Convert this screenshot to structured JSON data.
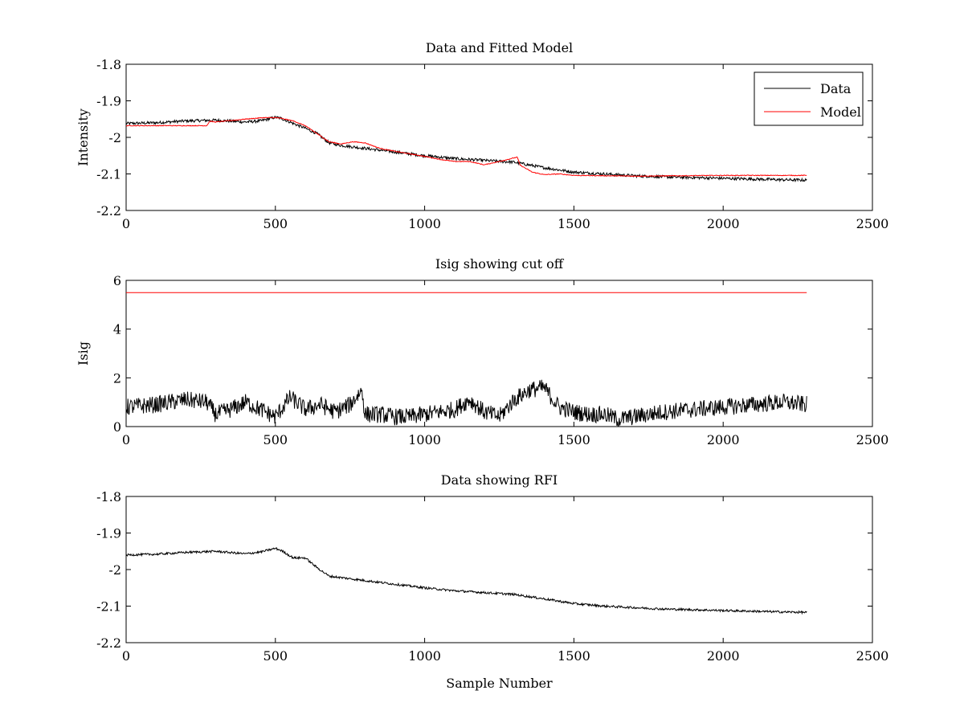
{
  "chart_data": [
    {
      "type": "line",
      "title": "Data and Fitted Model",
      "xlabel": "",
      "ylabel": "Intensity",
      "xlim": [
        0,
        2500
      ],
      "ylim": [
        -2.2,
        -1.8
      ],
      "xticks": [
        "0",
        "500",
        "1000",
        "1500",
        "2000",
        "2500"
      ],
      "yticks": [
        "-1.8",
        "-1.9",
        "-2",
        "-2.1",
        "-2.2"
      ],
      "legend": {
        "position": "top-right"
      },
      "series": [
        {
          "name": "Data",
          "color": "#000000",
          "noise": 0.004,
          "x": [
            0,
            100,
            200,
            300,
            400,
            450,
            500,
            520,
            560,
            600,
            640,
            680,
            720,
            800,
            900,
            1000,
            1100,
            1200,
            1300,
            1400,
            1500,
            1600,
            1700,
            1800,
            1900,
            2000,
            2100,
            2200,
            2280
          ],
          "y": [
            -1.962,
            -1.96,
            -1.955,
            -1.953,
            -1.958,
            -1.955,
            -1.945,
            -1.948,
            -1.962,
            -1.975,
            -1.99,
            -2.015,
            -2.022,
            -2.03,
            -2.04,
            -2.05,
            -2.058,
            -2.063,
            -2.068,
            -2.083,
            -2.095,
            -2.1,
            -2.105,
            -2.108,
            -2.11,
            -2.112,
            -2.114,
            -2.116,
            -2.117
          ]
        },
        {
          "name": "Model",
          "color": "#ff0000",
          "noise": 0.001,
          "x": [
            0,
            270,
            280,
            300,
            400,
            460,
            500,
            520,
            560,
            600,
            640,
            680,
            720,
            760,
            800,
            850,
            900,
            1000,
            1050,
            1100,
            1150,
            1200,
            1250,
            1310,
            1320,
            1360,
            1400,
            1450,
            1500,
            1700,
            2000,
            2200,
            2280
          ],
          "y": [
            -1.968,
            -1.968,
            -1.956,
            -1.958,
            -1.95,
            -1.946,
            -1.946,
            -1.948,
            -1.955,
            -1.968,
            -1.99,
            -2.012,
            -2.018,
            -2.012,
            -2.015,
            -2.03,
            -2.038,
            -2.052,
            -2.06,
            -2.066,
            -2.066,
            -2.075,
            -2.066,
            -2.054,
            -2.076,
            -2.095,
            -2.102,
            -2.1,
            -2.104,
            -2.106,
            -2.104,
            -2.104,
            -2.104
          ]
        }
      ]
    },
    {
      "type": "line",
      "title": "Isig showing cut off",
      "xlabel": "",
      "ylabel": "Isig",
      "xlim": [
        0,
        2500
      ],
      "ylim": [
        0,
        6
      ],
      "xticks": [
        "0",
        "500",
        "1000",
        "1500",
        "2000",
        "2500"
      ],
      "yticks": [
        "0",
        "2",
        "4",
        "6"
      ],
      "series": [
        {
          "color": "#000000",
          "noise": 0.35,
          "x": [
            0,
            100,
            200,
            270,
            300,
            350,
            400,
            450,
            500,
            550,
            600,
            650,
            700,
            750,
            790,
            800,
            850,
            900,
            950,
            1000,
            1050,
            1100,
            1150,
            1200,
            1250,
            1300,
            1350,
            1400,
            1450,
            1500,
            1550,
            1600,
            1650,
            1700,
            1800,
            1900,
            2000,
            2100,
            2200,
            2280
          ],
          "y": [
            0.8,
            0.9,
            1.1,
            1.0,
            0.5,
            0.7,
            1.0,
            0.7,
            0.4,
            1.2,
            0.7,
            0.9,
            0.6,
            0.9,
            1.5,
            0.5,
            0.5,
            0.4,
            0.4,
            0.5,
            0.6,
            0.7,
            1.1,
            0.6,
            0.4,
            1.1,
            1.5,
            1.6,
            0.8,
            0.6,
            0.5,
            0.5,
            0.3,
            0.4,
            0.6,
            0.7,
            0.8,
            0.9,
            1.0,
            0.9
          ]
        },
        {
          "color": "#ff0000",
          "noise": 0,
          "x": [
            0,
            2280
          ],
          "y": [
            5.5,
            5.5
          ]
        }
      ]
    },
    {
      "type": "line",
      "title": "Data showing RFI",
      "xlabel": "Sample Number",
      "ylabel": "",
      "xlim": [
        0,
        2500
      ],
      "ylim": [
        -2.2,
        -1.8
      ],
      "xticks": [
        "0",
        "500",
        "1000",
        "1500",
        "2000",
        "2500"
      ],
      "yticks": [
        "-1.8",
        "-1.9",
        "-2",
        "-2.1",
        "-2.2"
      ],
      "series": [
        {
          "color": "#000000",
          "noise": 0.003,
          "x": [
            0,
            100,
            200,
            300,
            400,
            450,
            500,
            520,
            560,
            600,
            640,
            680,
            720,
            800,
            900,
            1000,
            1100,
            1200,
            1300,
            1400,
            1500,
            1600,
            1700,
            1800,
            1900,
            2000,
            2100,
            2200,
            2280
          ],
          "y": [
            -1.96,
            -1.958,
            -1.953,
            -1.95,
            -1.957,
            -1.952,
            -1.942,
            -1.948,
            -1.968,
            -1.968,
            -1.995,
            -2.018,
            -2.022,
            -2.03,
            -2.04,
            -2.05,
            -2.058,
            -2.063,
            -2.068,
            -2.08,
            -2.093,
            -2.1,
            -2.104,
            -2.108,
            -2.11,
            -2.112,
            -2.114,
            -2.116,
            -2.117
          ]
        }
      ]
    }
  ]
}
